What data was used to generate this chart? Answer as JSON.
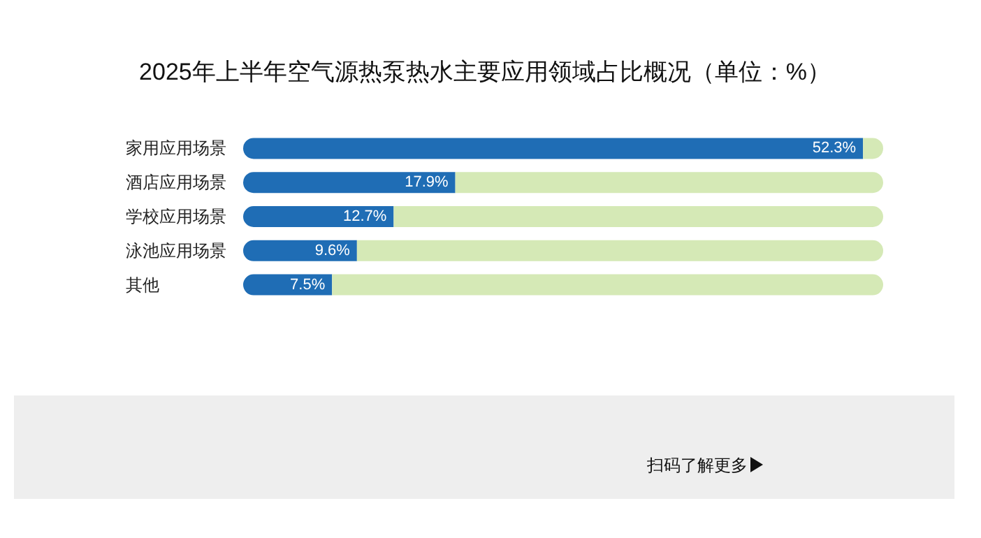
{
  "chart_data": {
    "type": "bar",
    "orientation": "horizontal",
    "title": "2025年上半年空气源热泵热水主要应用领域占比概况（单位：%）",
    "categories": [
      "家用应用场景",
      "酒店应用场景",
      "学校应用场景",
      "泳池应用场景",
      "其他"
    ],
    "xlim": [
      0,
      54
    ],
    "tick_labels": "y",
    "stacked": true,
    "series": [
      {
        "color": "#1f6db5",
        "values": [
          52.3,
          17.9,
          12.7,
          9.6,
          7.5
        ],
        "value_labels": [
          "52.3%",
          "17.9%",
          "12.7%",
          "9.6%",
          "7.5%"
        ]
      },
      {
        "color": "#d5e9b6",
        "values": [
          1.7,
          36.1,
          41.3,
          44.4,
          46.5
        ]
      }
    ],
    "annotations": [
      "扫码了解更多"
    ]
  }
}
